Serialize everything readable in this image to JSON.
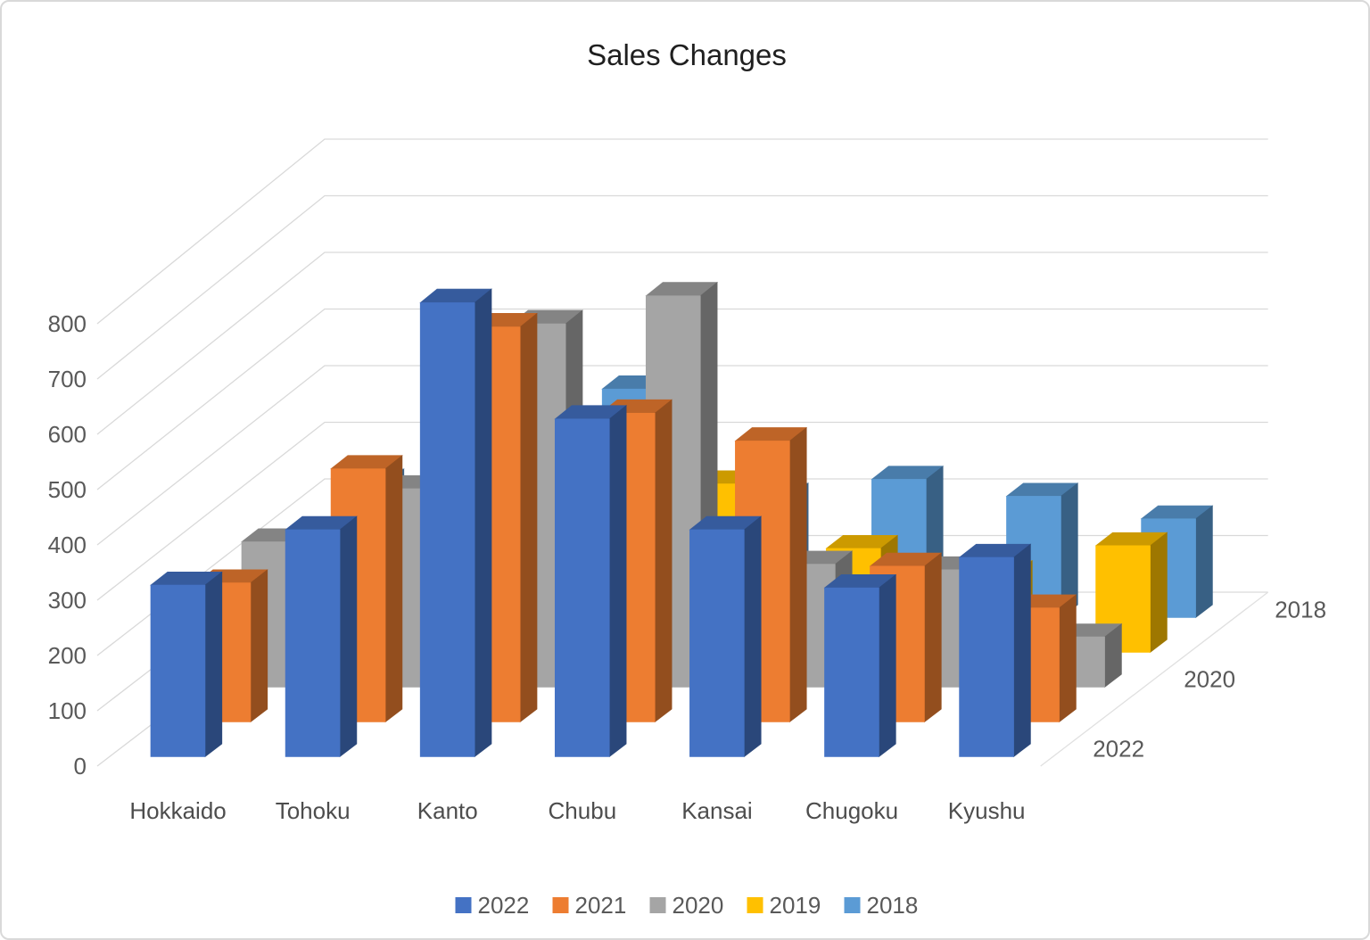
{
  "styling": {
    "background": "#FFFFFF",
    "border": "#D9D9D9",
    "gridline_color": "#D9D9D9",
    "axis_text_color": "#595959",
    "title_color": "#1F1F1F"
  },
  "chart_data": {
    "type": "bar",
    "variant": "3d-column-clustered",
    "title": "Sales Changes",
    "categories": [
      "Hokkaido",
      "Tohoku",
      "Kanto",
      "Chubu",
      "Kansai",
      "Chugoku",
      "Kyushu"
    ],
    "series": [
      {
        "name": "2022",
        "color": "#4472C4",
        "values": [
          310,
          410,
          820,
          610,
          410,
          305,
          360
        ]
      },
      {
        "name": "2021",
        "color": "#ED7D31",
        "values": [
          250,
          455,
          710,
          555,
          505,
          280,
          205
        ]
      },
      {
        "name": "2020",
        "color": "#A5A5A5",
        "values": [
          260,
          355,
          650,
          700,
          220,
          210,
          90
        ]
      },
      {
        "name": "2019",
        "color": "#FFC000",
        "values": [
          180,
          250,
          350,
          300,
          185,
          140,
          190
        ]
      },
      {
        "name": "2018",
        "color": "#5B9BD5",
        "values": [
          240,
          280,
          405,
          215,
          245,
          215,
          175
        ]
      }
    ],
    "value_axis": {
      "min": 0,
      "max": 800,
      "step": 100,
      "tick_labels": [
        "0",
        "100",
        "200",
        "300",
        "400",
        "500",
        "600",
        "700",
        "800"
      ]
    },
    "depth_axis_labels": [
      "2022",
      "2020",
      "2018"
    ],
    "legend": {
      "position": "bottom",
      "entries": [
        "2022",
        "2021",
        "2020",
        "2019",
        "2018"
      ]
    },
    "gridlines": true
  }
}
